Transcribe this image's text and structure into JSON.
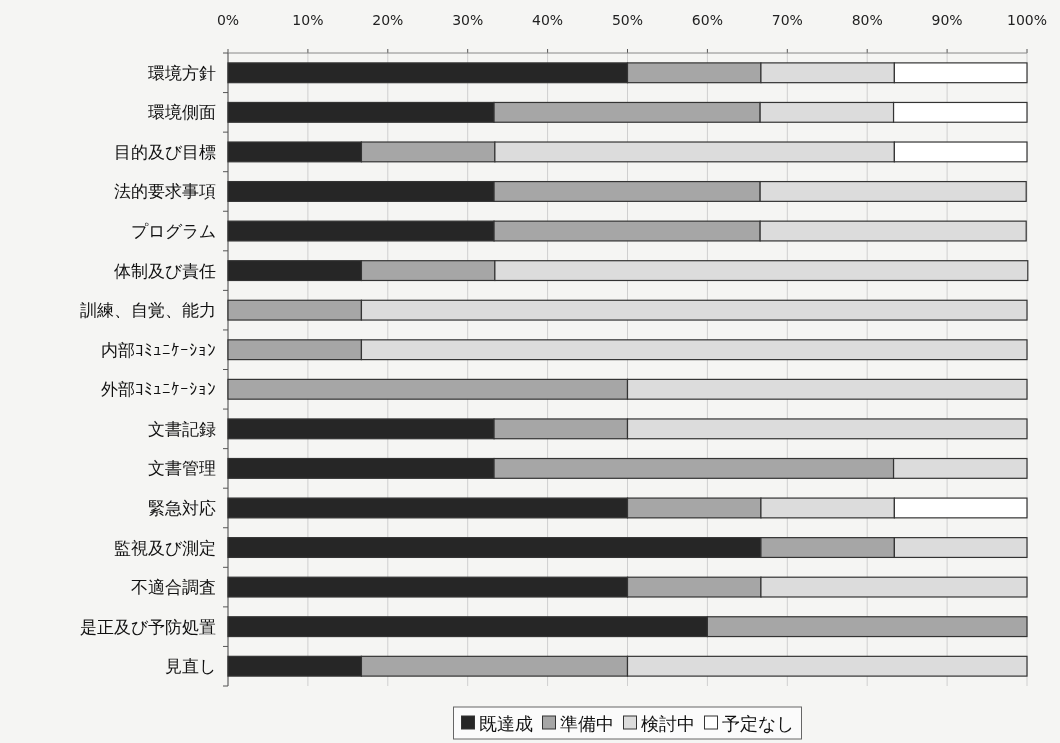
{
  "chart_data": {
    "type": "bar",
    "orientation": "horizontal",
    "stacked": true,
    "categories": [
      "環境方針",
      "環境側面",
      "目的及び目標",
      "法的要求事項",
      "プログラム",
      "体制及び責任",
      "訓練、自覚、能力",
      "内部ｺﾐｭﾆｹｰｼｮﾝ",
      "外部ｺﾐｭﾆｹｰｼｮﾝ",
      "文書記録",
      "文書管理",
      "緊急対応",
      "監視及び測定",
      "不適合調査",
      "是正及び予防処置",
      "見直し"
    ],
    "series": [
      {
        "name": "既達成",
        "color": "#262626",
        "values": [
          50,
          33.3,
          16.7,
          33.3,
          33.3,
          16.7,
          0,
          0,
          0,
          33.3,
          33.3,
          50,
          66.7,
          50,
          60,
          16.7
        ]
      },
      {
        "name": "準備中",
        "color": "#a6a6a6",
        "values": [
          16.7,
          33.3,
          16.7,
          33.3,
          33.3,
          16.7,
          16.7,
          16.7,
          50,
          16.7,
          50,
          16.7,
          16.7,
          16.7,
          40,
          33.3
        ]
      },
      {
        "name": "検討中",
        "color": "#dcdcdc",
        "values": [
          16.7,
          16.7,
          50,
          33.3,
          33.3,
          66.7,
          83.3,
          83.3,
          50,
          50,
          16.7,
          16.7,
          16.6,
          33.3,
          0,
          50
        ]
      },
      {
        "name": "予定なし",
        "color": "#ffffff",
        "values": [
          16.6,
          16.7,
          16.6,
          0,
          0,
          0,
          0,
          0,
          0,
          0,
          0,
          16.6,
          0,
          0,
          0,
          0
        ]
      }
    ],
    "xlim": [
      0,
      100
    ],
    "xticks": [
      {
        "value": 0,
        "label": "0%"
      },
      {
        "value": 10,
        "label": "10%"
      },
      {
        "value": 20,
        "label": "20%"
      },
      {
        "value": 30,
        "label": "30%"
      },
      {
        "value": 40,
        "label": "40%"
      },
      {
        "value": 50,
        "label": "50%"
      },
      {
        "value": 60,
        "label": "60%"
      },
      {
        "value": 70,
        "label": "70%"
      },
      {
        "value": 80,
        "label": "80%"
      },
      {
        "value": 90,
        "label": "90%"
      },
      {
        "value": 100,
        "label": "100%"
      }
    ],
    "grid": "x",
    "legend": "bottom"
  }
}
